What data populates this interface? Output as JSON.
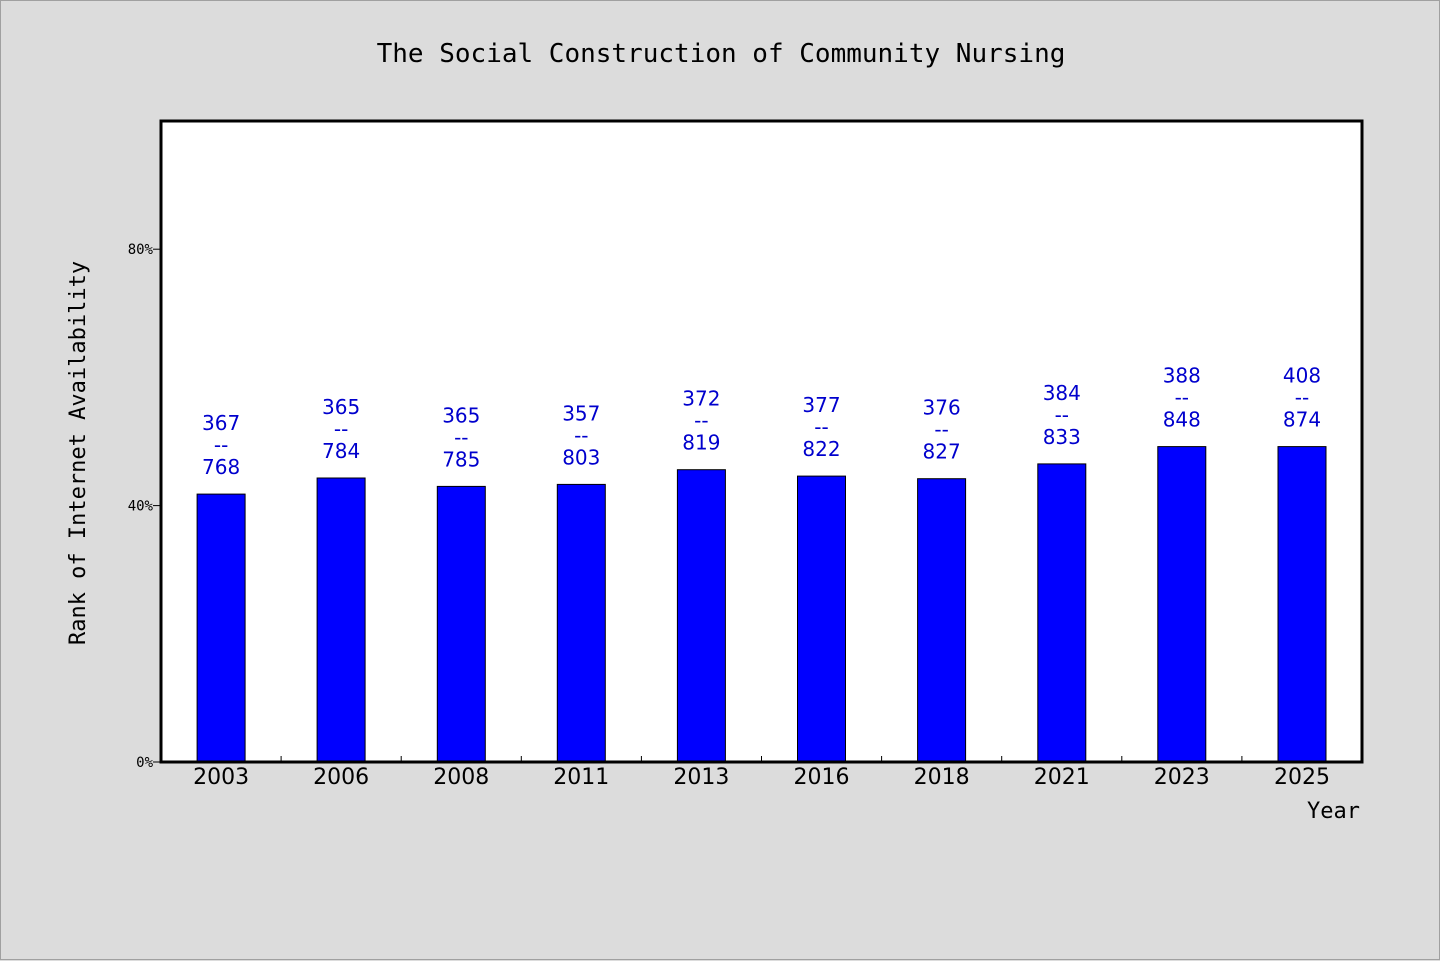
{
  "chart_data": {
    "type": "bar",
    "title": "The Social Construction of Community Nursing",
    "xlabel": "Year",
    "ylabel": "Rank of Internet Availability",
    "categories": [
      "2003",
      "2006",
      "2008",
      "2011",
      "2013",
      "2016",
      "2018",
      "2021",
      "2023",
      "2025"
    ],
    "values": [
      41.8,
      44.3,
      43.0,
      43.3,
      45.6,
      44.6,
      44.2,
      46.5,
      49.2,
      49.2
    ],
    "bar_labels": [
      {
        "top": "367",
        "sep": "--",
        "bottom": "768"
      },
      {
        "top": "365",
        "sep": "--",
        "bottom": "784"
      },
      {
        "top": "365",
        "sep": "--",
        "bottom": "785"
      },
      {
        "top": "357",
        "sep": "--",
        "bottom": "803"
      },
      {
        "top": "372",
        "sep": "--",
        "bottom": "819"
      },
      {
        "top": "377",
        "sep": "--",
        "bottom": "822"
      },
      {
        "top": "376",
        "sep": "--",
        "bottom": "827"
      },
      {
        "top": "384",
        "sep": "--",
        "bottom": "833"
      },
      {
        "top": "388",
        "sep": "--",
        "bottom": "848"
      },
      {
        "top": "408",
        "sep": "--",
        "bottom": "874"
      }
    ],
    "yticks": [
      0,
      40,
      80
    ],
    "ytick_labels": [
      "0%",
      "40%",
      "80%"
    ],
    "ylim": [
      0,
      100
    ],
    "grid": false,
    "bar_color": "#0000ff",
    "label_color": "#0000cd",
    "background": "#dcdcdc",
    "plot_background": "#ffffff"
  }
}
